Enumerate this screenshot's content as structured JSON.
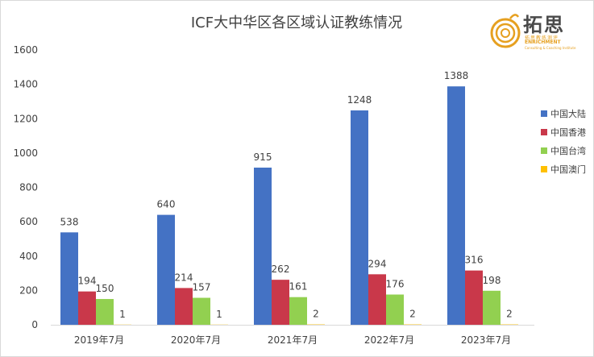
{
  "chart_data": {
    "type": "bar",
    "title": "ICF大中华区各区域认证教练情况",
    "categories": [
      "2019年7月",
      "2020年7月",
      "2021年7月",
      "2022年7月",
      "2023年7月"
    ],
    "series": [
      {
        "name": "中国大陆",
        "color": "#4472c4",
        "values": [
          538,
          640,
          915,
          1248,
          1388
        ]
      },
      {
        "name": "中国香港",
        "color": "#c9384a",
        "values": [
          194,
          214,
          262,
          294,
          316
        ]
      },
      {
        "name": "中国台湾",
        "color": "#92d050",
        "values": [
          150,
          157,
          161,
          176,
          198
        ]
      },
      {
        "name": "中国澳门",
        "color": "#ffc000",
        "values": [
          1,
          1,
          2,
          2,
          2
        ]
      }
    ],
    "ylim": [
      0,
      1600
    ],
    "yticks": [
      0,
      200,
      400,
      600,
      800,
      1000,
      1200,
      1400,
      1600
    ],
    "grid": false,
    "legend": "right"
  },
  "logo": {
    "title": "拓思",
    "cn": "拓思教练测评",
    "en": "ENRICHMENT",
    "sub": "Consulting & Coaching Institute"
  }
}
